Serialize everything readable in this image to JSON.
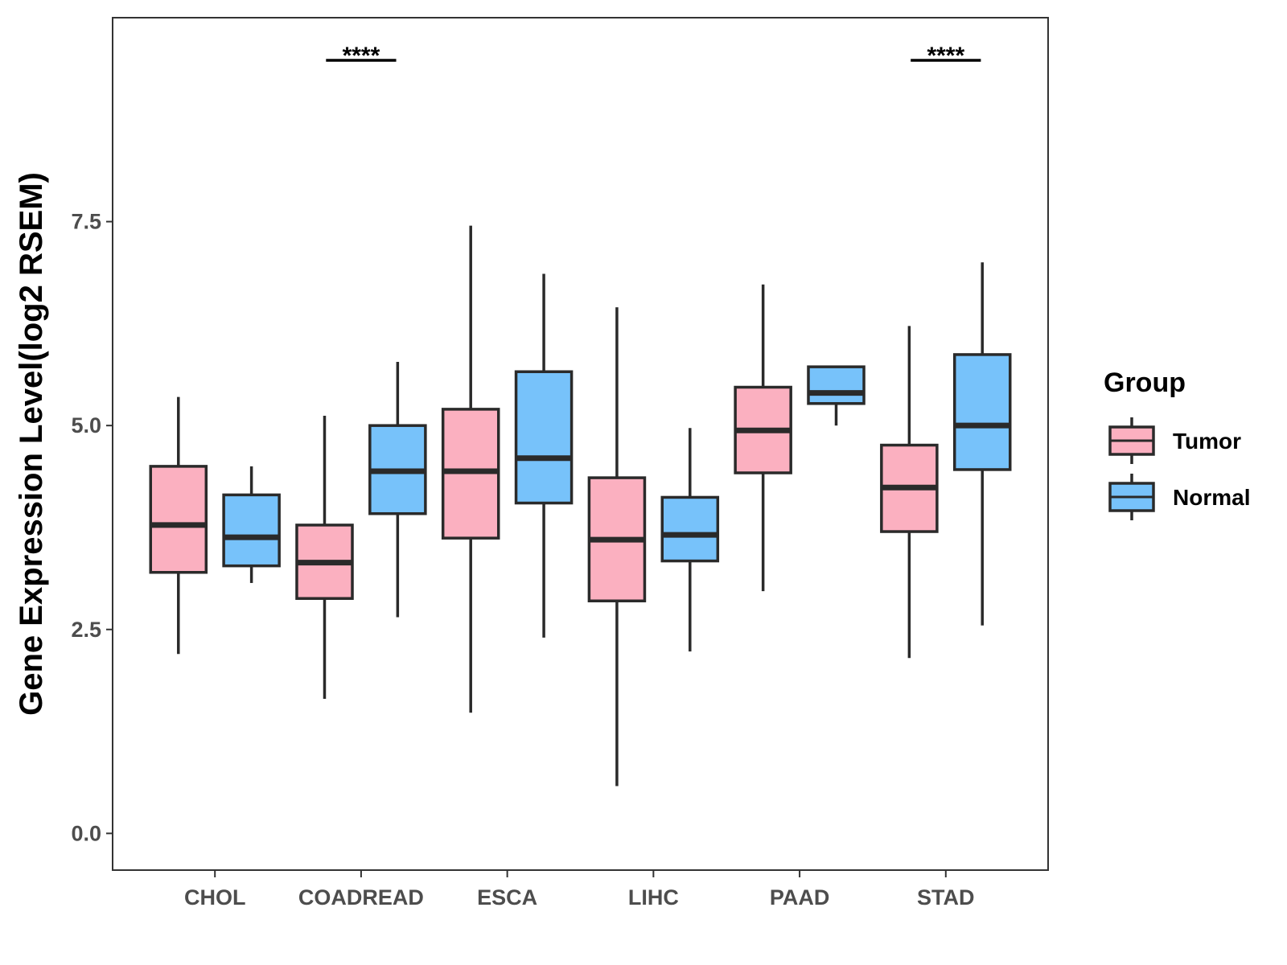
{
  "chart_data": {
    "type": "boxplot",
    "title": "",
    "xlabel": "",
    "ylabel": "Gene Expression Level(log2 RSEM)",
    "ylim": [
      -0.45,
      10.0
    ],
    "yticks": [
      0.0,
      2.5,
      5.0,
      7.5
    ],
    "ytick_labels": [
      "0.0",
      "2.5",
      "5.0",
      "7.5"
    ],
    "categories": [
      "CHOL",
      "COADREAD",
      "ESCA",
      "LIHC",
      "PAAD",
      "STAD"
    ],
    "legend": {
      "title": "Group",
      "position": "right"
    },
    "series": [
      {
        "name": "Tumor",
        "color": "#FBB0C0",
        "boxes": [
          {
            "min": 2.2,
            "q1": 3.2,
            "median": 3.78,
            "q3": 4.5,
            "max": 5.35
          },
          {
            "min": 1.65,
            "q1": 2.88,
            "median": 3.32,
            "q3": 3.78,
            "max": 5.12
          },
          {
            "min": 1.48,
            "q1": 3.62,
            "median": 4.44,
            "q3": 5.2,
            "max": 7.45
          },
          {
            "min": 0.58,
            "q1": 2.85,
            "median": 3.6,
            "q3": 4.36,
            "max": 6.45
          },
          {
            "min": 2.97,
            "q1": 4.42,
            "median": 4.94,
            "q3": 5.47,
            "max": 6.73
          },
          {
            "min": 2.15,
            "q1": 3.7,
            "median": 4.24,
            "q3": 4.76,
            "max": 6.22
          }
        ]
      },
      {
        "name": "Normal",
        "color": "#77C2FA",
        "boxes": [
          {
            "min": 3.07,
            "q1": 3.28,
            "median": 3.63,
            "q3": 4.15,
            "max": 4.5
          },
          {
            "min": 2.65,
            "q1": 3.92,
            "median": 4.44,
            "q3": 5.0,
            "max": 5.78
          },
          {
            "min": 2.4,
            "q1": 4.05,
            "median": 4.6,
            "q3": 5.66,
            "max": 6.86
          },
          {
            "min": 2.23,
            "q1": 3.34,
            "median": 3.66,
            "q3": 4.12,
            "max": 4.97
          },
          {
            "min": 5.0,
            "q1": 5.27,
            "median": 5.4,
            "q3": 5.72,
            "max": 5.72
          },
          {
            "min": 2.55,
            "q1": 4.46,
            "median": 5.0,
            "q3": 5.87,
            "max": 7.0
          }
        ]
      }
    ],
    "annotations": [
      {
        "category": "COADREAD",
        "label": "****"
      },
      {
        "category": "STAD",
        "label": "****"
      }
    ]
  }
}
